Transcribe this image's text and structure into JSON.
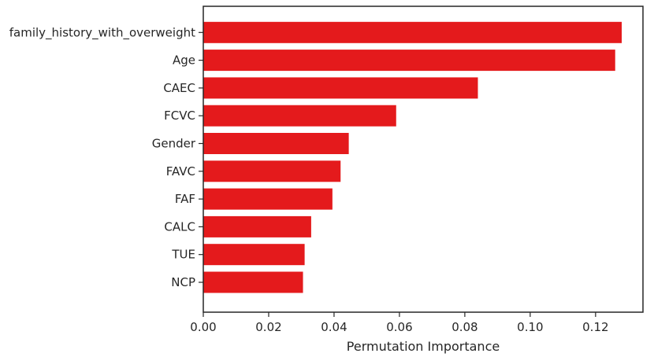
{
  "chart_data": {
    "type": "bar",
    "orientation": "horizontal",
    "categories": [
      "family_history_with_overweight",
      "Age",
      "CAEC",
      "FCVC",
      "Gender",
      "FAVC",
      "FAF",
      "CALC",
      "TUE",
      "NCP"
    ],
    "values": [
      0.128,
      0.126,
      0.084,
      0.059,
      0.0445,
      0.042,
      0.0395,
      0.033,
      0.031,
      0.0305
    ],
    "xlabel": "Permutation Importance",
    "ylabel": "",
    "xlim": [
      0.0,
      0.1345
    ],
    "xticks": [
      "0.00",
      "0.02",
      "0.04",
      "0.06",
      "0.08",
      "0.10",
      "0.12"
    ],
    "bar_color": "#e41a1c",
    "grid": false
  }
}
